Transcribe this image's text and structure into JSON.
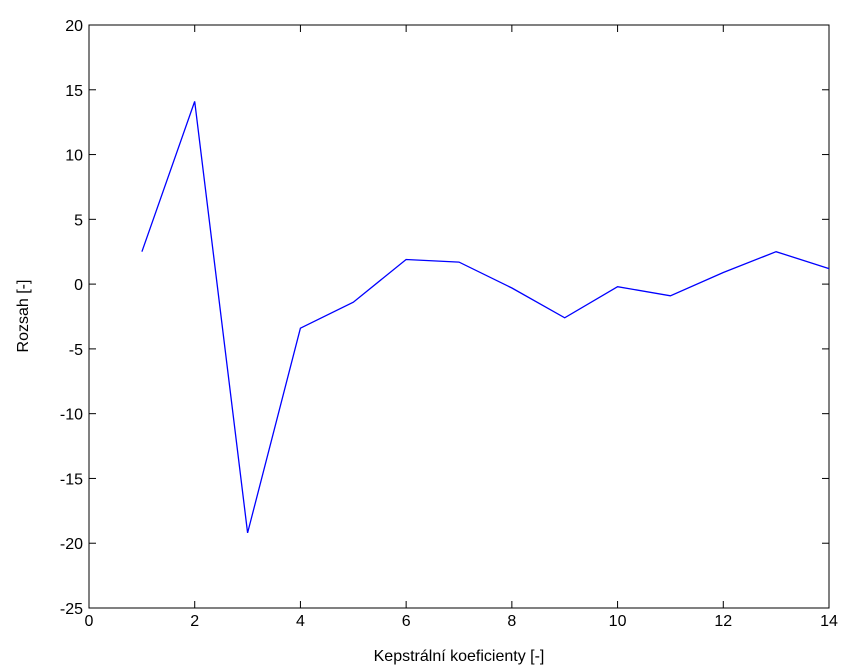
{
  "chart_data": {
    "type": "line",
    "xlabel": "Kepstrální koeficienty [-]",
    "ylabel": "Rozsah [-]",
    "xlim": [
      0,
      14
    ],
    "ylim": [
      -25,
      20
    ],
    "xticks": [
      0,
      2,
      4,
      6,
      8,
      10,
      12,
      14
    ],
    "yticks": [
      20,
      15,
      10,
      5,
      0,
      -5,
      -10,
      -15,
      -20,
      -25
    ],
    "grid": false,
    "series": [
      {
        "color": "#0000ff",
        "x": [
          1,
          2,
          3,
          4,
          5,
          6,
          7,
          8,
          9,
          10,
          11,
          12,
          13,
          14
        ],
        "y": [
          2.5,
          14.1,
          -19.2,
          -3.4,
          -1.4,
          1.9,
          1.7,
          -0.3,
          -2.6,
          -0.2,
          -0.9,
          0.9,
          2.5,
          1.2
        ]
      }
    ]
  }
}
